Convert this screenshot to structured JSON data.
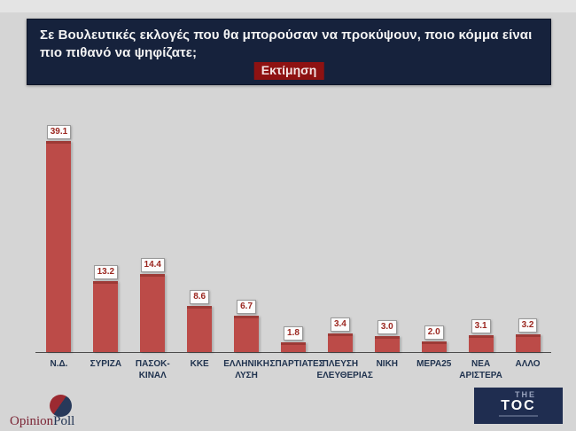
{
  "header": {
    "title": "Σε Βουλευτικές εκλογές που θα μπορούσαν να προκύψουν, ποιο κόμμα είναι πιο πιθανό να ψηφίζατε;",
    "badge": "Εκτίμηση"
  },
  "chart_data": {
    "type": "bar",
    "title": "Σε Βουλευτικές εκλογές που θα μπορούσαν να προκύψουν, ποιο κόμμα είναι πιο πιθανό να ψηφίζατε; (Εκτίμηση)",
    "categories": [
      "Ν.Δ.",
      "ΣΥΡΙΖΑ",
      "ΠΑΣΟΚ- ΚΙΝΑΛ",
      "ΚΚΕ",
      "ΕΛΛΗΝΙΚΗ ΛΥΣΗ",
      "ΣΠΑΡΤΙΑΤΕΣ",
      "ΠΛΕΥΣΗ ΕΛΕΥΘΕΡΙΑΣ",
      "ΝΙΚΗ",
      "ΜΕΡΑ25",
      "ΝΕΑ ΑΡΙΣΤΕΡΑ",
      "ΑΛΛΟ"
    ],
    "values": [
      39.1,
      13.2,
      14.4,
      8.6,
      6.7,
      1.8,
      3.4,
      3.0,
      2.0,
      3.1,
      3.2
    ],
    "xlabel": "",
    "ylabel": "",
    "ylim": [
      0,
      42
    ],
    "grid": false,
    "legend": false,
    "data_labels": true,
    "bar_color": "#bc4b48"
  },
  "palette": {
    "page_gray": "#d5d5d5",
    "navy": "#16223c",
    "badge_red": "#8e1212",
    "bar_red": "#bc4b48",
    "bar_red_dark": "#9d3a36",
    "value_red": "#9b261f",
    "label_navy": "#20334f",
    "toc_navy": "#1f2d50",
    "op_red": "#7b2535",
    "op_navy": "#203352",
    "op_red_circle": "#9c2a31",
    "op_navy_circle": "#27395a"
  },
  "footer": {
    "left_logo": {
      "text_primary": "Opinion",
      "text_secondary": "Poll"
    },
    "right_logo": {
      "line1": "THE",
      "line2": "TOC"
    }
  }
}
